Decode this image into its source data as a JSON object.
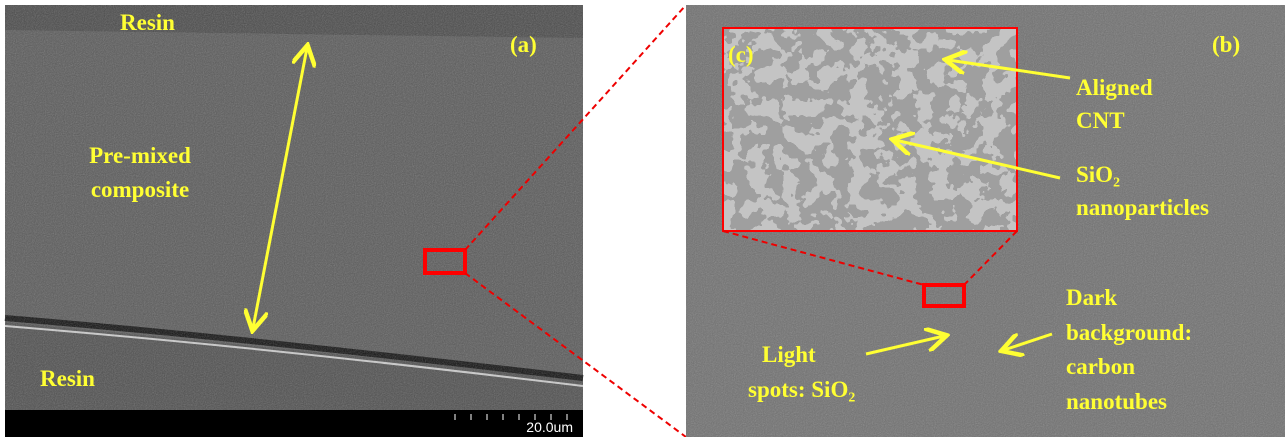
{
  "panel_a": {
    "label": "(a)",
    "resin_top": "Resin",
    "resin_bottom": "Resin",
    "composite_label": [
      "Pre-mixed",
      "composite"
    ],
    "scale_bar": "20.0um"
  },
  "panel_b": {
    "label": "(b)",
    "aligned_label": [
      "Aligned",
      "CNT"
    ],
    "sio2_label": [
      "SiO₂",
      "nanoparticles"
    ],
    "light_label": [
      "Light",
      "spots: SiO₂"
    ],
    "dark_label": [
      "Dark",
      "background:",
      "carbon",
      "nanotubes"
    ]
  },
  "inset_c": {
    "label": "(c)"
  }
}
